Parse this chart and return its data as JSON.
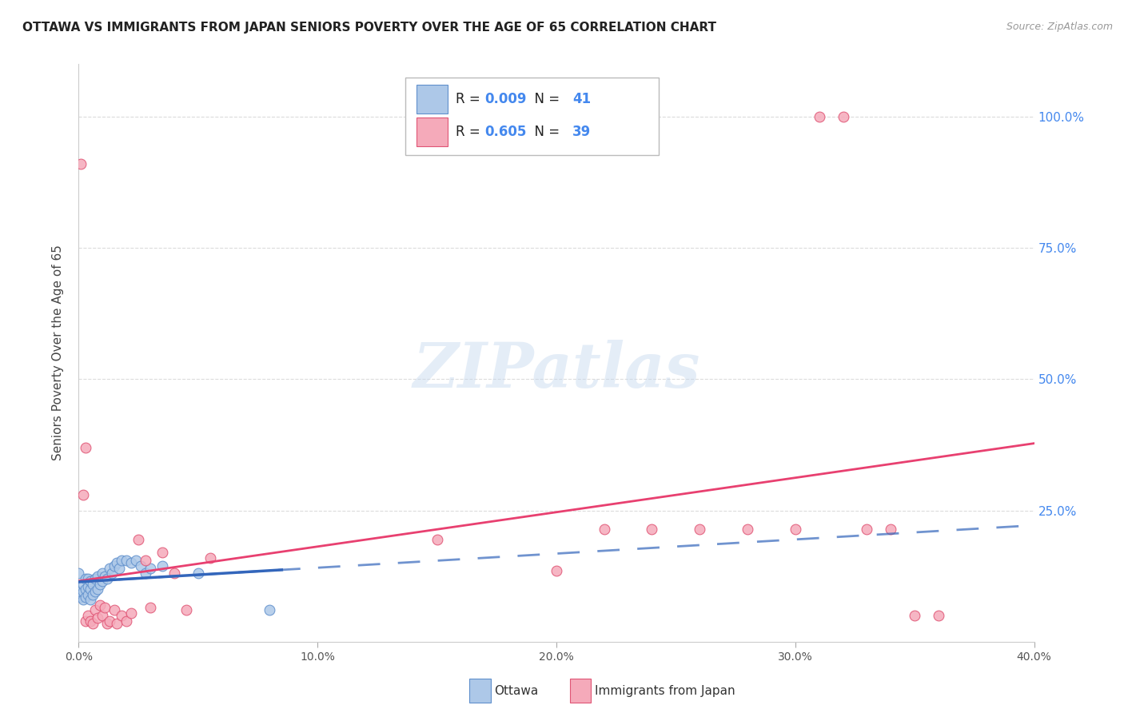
{
  "title": "OTTAWA VS IMMIGRANTS FROM JAPAN SENIORS POVERTY OVER THE AGE OF 65 CORRELATION CHART",
  "source": "Source: ZipAtlas.com",
  "ylabel": "Seniors Poverty Over the Age of 65",
  "xlim": [
    0.0,
    0.4
  ],
  "ylim": [
    0.0,
    1.1
  ],
  "xtick_labels": [
    "0.0%",
    "10.0%",
    "20.0%",
    "30.0%",
    "40.0%"
  ],
  "xtick_values": [
    0.0,
    0.1,
    0.2,
    0.3,
    0.4
  ],
  "ytick_labels_right": [
    "100.0%",
    "75.0%",
    "50.0%",
    "25.0%"
  ],
  "ytick_values_right": [
    1.0,
    0.75,
    0.5,
    0.25
  ],
  "ottawa_color": "#adc8e8",
  "japan_color": "#f5aaba",
  "ottawa_edge_color": "#6090cc",
  "japan_edge_color": "#e05575",
  "trendline_ottawa_color": "#3366bb",
  "trendline_japan_color": "#e84070",
  "R_ottawa": 0.009,
  "N_ottawa": 41,
  "R_japan": 0.605,
  "N_japan": 39,
  "legend_label_ottawa": "Ottawa",
  "legend_label_japan": "Immigrants from Japan",
  "watermark": "ZIPatlas",
  "title_color": "#222222",
  "right_axis_color": "#4488ee",
  "ottawa_x": [
    0.0,
    0.001,
    0.001,
    0.002,
    0.002,
    0.002,
    0.003,
    0.003,
    0.003,
    0.004,
    0.004,
    0.004,
    0.005,
    0.005,
    0.005,
    0.006,
    0.006,
    0.007,
    0.007,
    0.008,
    0.008,
    0.009,
    0.01,
    0.01,
    0.011,
    0.012,
    0.013,
    0.014,
    0.015,
    0.016,
    0.017,
    0.018,
    0.02,
    0.022,
    0.024,
    0.026,
    0.028,
    0.03,
    0.035,
    0.05,
    0.08
  ],
  "ottawa_y": [
    0.13,
    0.085,
    0.095,
    0.08,
    0.095,
    0.11,
    0.085,
    0.1,
    0.12,
    0.09,
    0.105,
    0.12,
    0.08,
    0.1,
    0.115,
    0.09,
    0.11,
    0.095,
    0.12,
    0.1,
    0.125,
    0.11,
    0.115,
    0.13,
    0.125,
    0.12,
    0.14,
    0.13,
    0.145,
    0.15,
    0.14,
    0.155,
    0.155,
    0.15,
    0.155,
    0.145,
    0.13,
    0.14,
    0.145,
    0.13,
    0.06
  ],
  "japan_x": [
    0.001,
    0.002,
    0.003,
    0.003,
    0.004,
    0.005,
    0.006,
    0.007,
    0.008,
    0.009,
    0.01,
    0.011,
    0.012,
    0.013,
    0.015,
    0.016,
    0.018,
    0.02,
    0.022,
    0.025,
    0.028,
    0.03,
    0.035,
    0.04,
    0.045,
    0.055,
    0.15,
    0.2,
    0.22,
    0.24,
    0.26,
    0.28,
    0.3,
    0.31,
    0.32,
    0.33,
    0.34,
    0.35,
    0.36
  ],
  "japan_y": [
    0.91,
    0.28,
    0.37,
    0.04,
    0.05,
    0.04,
    0.035,
    0.06,
    0.045,
    0.07,
    0.05,
    0.065,
    0.035,
    0.04,
    0.06,
    0.035,
    0.05,
    0.04,
    0.055,
    0.195,
    0.155,
    0.065,
    0.17,
    0.13,
    0.06,
    0.16,
    0.195,
    0.135,
    0.215,
    0.215,
    0.215,
    0.215,
    0.215,
    1.0,
    1.0,
    0.215,
    0.215,
    0.05,
    0.05
  ],
  "background_color": "#ffffff",
  "grid_color": "#cccccc",
  "marker_size": 85
}
